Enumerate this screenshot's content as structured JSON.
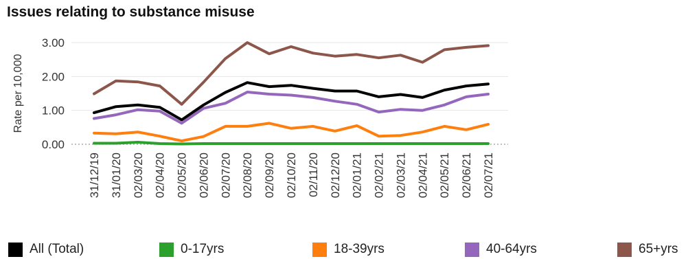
{
  "chart_data": {
    "type": "line",
    "title": "Issues relating to substance misuse",
    "xlabel": "",
    "ylabel": "Rate per 10,000",
    "ylim": [
      0,
      3
    ],
    "yticks": [
      "0.00",
      "1.00",
      "2.00",
      "3.00"
    ],
    "grid": true,
    "legend_position": "bottom",
    "categories": [
      "31/12/19",
      "31/01/20",
      "02/03/20",
      "02/04/20",
      "02/05/20",
      "02/06/20",
      "02/07/20",
      "02/08/20",
      "02/09/20",
      "02/10/20",
      "02/11/20",
      "02/12/20",
      "02/01/21",
      "02/02/21",
      "02/03/21",
      "02/04/21",
      "02/05/21",
      "02/06/21",
      "02/07/21"
    ],
    "series": [
      {
        "name": "All (Total)",
        "color": "#000000",
        "values": [
          0.93,
          1.11,
          1.16,
          1.09,
          0.72,
          1.16,
          1.53,
          1.82,
          1.7,
          1.74,
          1.65,
          1.57,
          1.57,
          1.4,
          1.47,
          1.38,
          1.6,
          1.72,
          1.78
        ]
      },
      {
        "name": "0-17yrs",
        "color": "#2ca02c",
        "values": [
          0.03,
          0.03,
          0.06,
          0.02,
          0.01,
          0.02,
          0.02,
          0.02,
          0.02,
          0.02,
          0.02,
          0.02,
          0.02,
          0.02,
          0.02,
          0.02,
          0.02,
          0.02,
          0.02
        ]
      },
      {
        "name": "18-39yrs",
        "color": "#ff7f0e",
        "values": [
          0.33,
          0.31,
          0.36,
          0.24,
          0.1,
          0.23,
          0.53,
          0.53,
          0.62,
          0.47,
          0.53,
          0.39,
          0.55,
          0.24,
          0.26,
          0.36,
          0.53,
          0.43,
          0.59
        ]
      },
      {
        "name": "40-64yrs",
        "color": "#9467bd",
        "values": [
          0.76,
          0.87,
          1.02,
          0.98,
          0.62,
          1.06,
          1.21,
          1.54,
          1.48,
          1.45,
          1.38,
          1.27,
          1.18,
          0.95,
          1.03,
          1.0,
          1.16,
          1.4,
          1.48
        ]
      },
      {
        "name": "65+yrs",
        "color": "#8c564b",
        "values": [
          1.49,
          1.87,
          1.84,
          1.72,
          1.18,
          1.83,
          2.53,
          3.0,
          2.67,
          2.88,
          2.69,
          2.6,
          2.65,
          2.55,
          2.63,
          2.42,
          2.79,
          2.86,
          2.91
        ]
      }
    ]
  }
}
